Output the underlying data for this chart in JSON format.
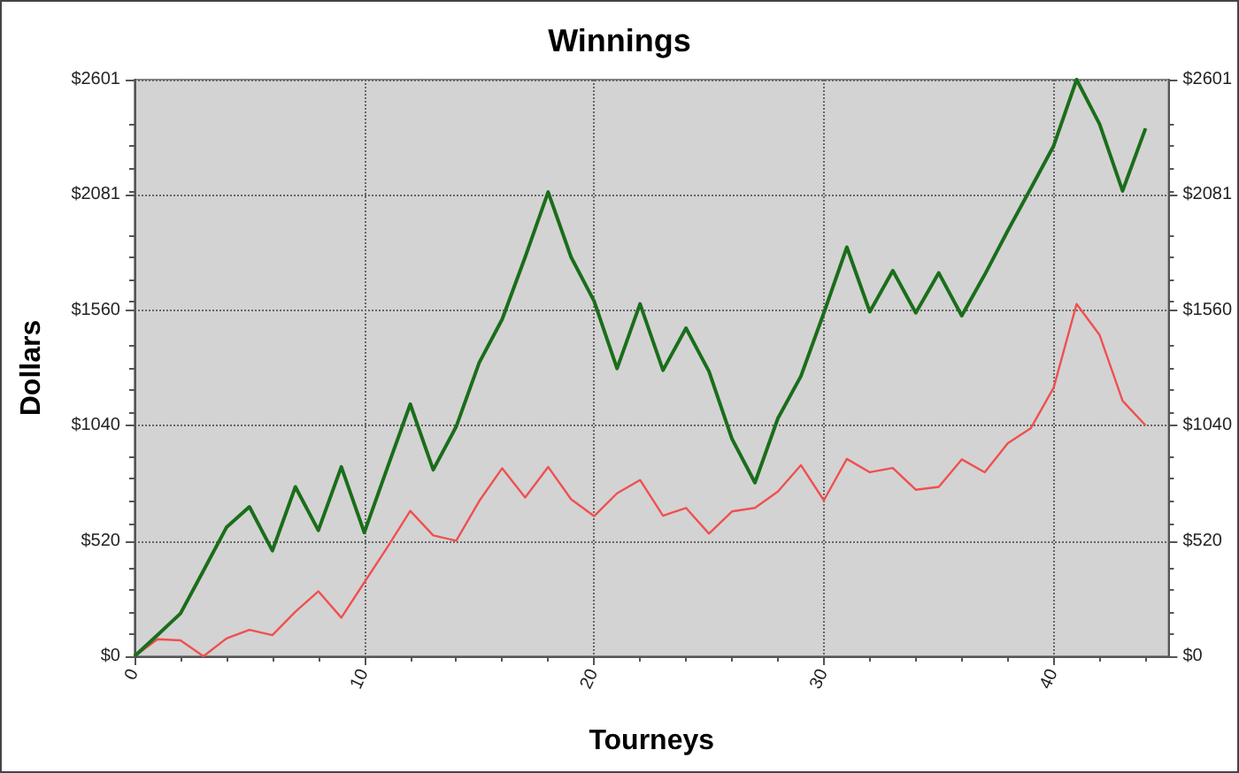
{
  "chart_data": {
    "type": "line",
    "title": "Winnings",
    "xlabel": "Tourneys",
    "ylabel": "Dollars",
    "x": [
      0,
      1,
      2,
      3,
      4,
      5,
      6,
      7,
      8,
      9,
      10,
      11,
      12,
      13,
      14,
      15,
      16,
      17,
      18,
      19,
      20,
      21,
      22,
      23,
      24,
      25,
      26,
      27,
      28,
      29,
      30,
      31,
      32,
      33,
      34,
      35,
      36,
      37,
      38,
      39,
      40,
      41,
      42,
      43,
      44
    ],
    "series": [
      {
        "color": "#1a6e1a",
        "values": [
          0,
          96,
          193,
          386,
          581,
          674,
          476,
          764,
          568,
          854,
          558,
          849,
          1137,
          841,
          1036,
          1324,
          1520,
          1800,
          2094,
          1800,
          1602,
          1298,
          1589,
          1290,
          1480,
          1285,
          981,
          783,
          1073,
          1263,
          1549,
          1845,
          1554,
          1739,
          1549,
          1729,
          1536,
          1721,
          1919,
          2109,
          2302,
          2601,
          2400,
          2099,
          2381
        ]
      },
      {
        "color": "#f05050",
        "values": [
          0,
          77,
          72,
          0,
          80,
          119,
          95,
          201,
          293,
          174,
          333,
          491,
          656,
          545,
          521,
          700,
          848,
          716,
          854,
          708,
          632,
          735,
          795,
          634,
          669,
          553,
          653,
          669,
          743,
          862,
          703,
          890,
          830,
          849,
          751,
          764,
          888,
          830,
          960,
          1028,
          1211,
          1589,
          1449,
          1152,
          1041
        ]
      }
    ],
    "xlim": [
      0,
      45
    ],
    "xticks": [
      0,
      10,
      20,
      30,
      40
    ],
    "ylim": [
      0,
      2601
    ],
    "yticks": [
      {
        "value": 0,
        "label": "$0"
      },
      {
        "value": 520,
        "label": "$520"
      },
      {
        "value": 1040,
        "label": "$1040"
      },
      {
        "value": 1560,
        "label": "$1560"
      },
      {
        "value": 2081,
        "label": "$2081"
      },
      {
        "value": 2601,
        "label": "$2601"
      }
    ],
    "y2lim": [
      0,
      2601
    ],
    "y2ticks": [
      {
        "value": 0,
        "label": "$0"
      },
      {
        "value": 520,
        "label": "$520"
      },
      {
        "value": 1040,
        "label": "$1040"
      },
      {
        "value": 1560,
        "label": "$1560"
      },
      {
        "value": 2081,
        "label": "$2081"
      },
      {
        "value": 2601,
        "label": "$2601"
      }
    ],
    "grid": true,
    "marker": "none",
    "line_style": "solid"
  }
}
